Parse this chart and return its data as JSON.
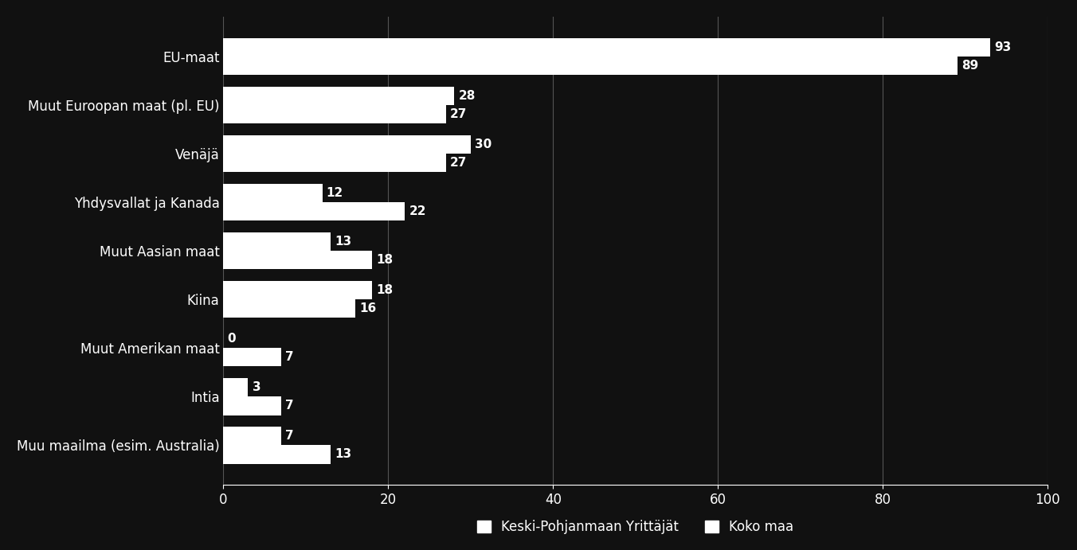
{
  "categories": [
    "EU-maat",
    "Muut Euroopan maat (pl. EU)",
    "Venäjä",
    "Yhdysvallat ja Kanada",
    "Muut Aasian maat",
    "Kiina",
    "Muut Amerikan maat",
    "Intia",
    "Muu maailma (esim. Australia)"
  ],
  "keski_pohjanmaa": [
    93,
    28,
    30,
    12,
    13,
    18,
    0,
    3,
    7
  ],
  "koko_maa": [
    89,
    27,
    27,
    22,
    18,
    16,
    7,
    7,
    13
  ],
  "bar_color_kp": "#ffffff",
  "bar_color_km": "#ffffff",
  "background_color": "#111111",
  "text_color": "#ffffff",
  "xlim": [
    0,
    100
  ],
  "xticks": [
    0,
    20,
    40,
    60,
    80,
    100
  ],
  "legend_label_kp": "Keski-Pohjanmaan Yrittäjät",
  "legend_label_km": "Koko maa",
  "bar_height": 0.38,
  "label_fontsize": 11,
  "tick_fontsize": 12,
  "legend_fontsize": 12,
  "category_fontsize": 12
}
